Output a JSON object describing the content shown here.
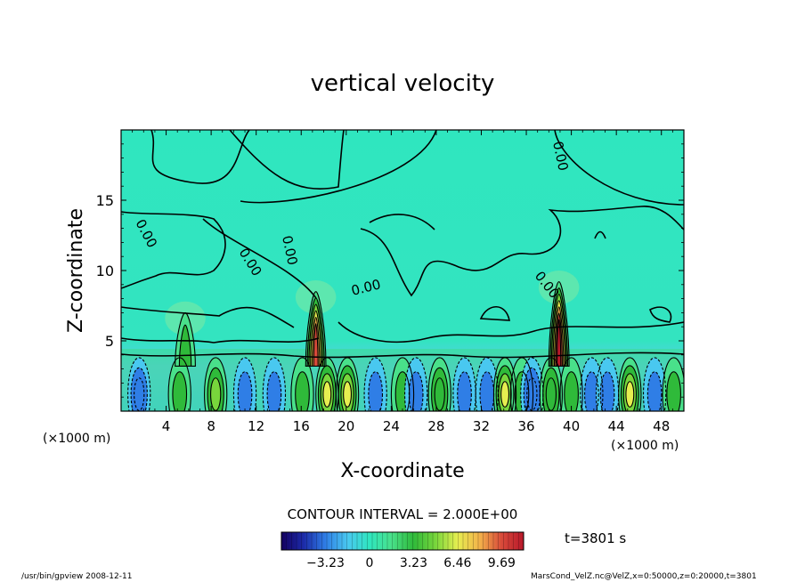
{
  "chart_data": {
    "type": "heatmap",
    "title": "vertical velocity",
    "xlabel": "X-coordinate",
    "ylabel": "Z-coordinate",
    "x_unit": "(×1000 m)",
    "xlim": [
      0,
      50
    ],
    "ylim": [
      0,
      20
    ],
    "x_ticks": [
      4,
      8,
      12,
      16,
      20,
      24,
      28,
      32,
      36,
      40,
      44,
      48
    ],
    "y_ticks": [
      5,
      10,
      15
    ],
    "contour_interval": "CONTOUR INTERVAL = 2.000E+00",
    "contour_label": "0.00",
    "colorbar": {
      "ticks": [
        "−3.23",
        "0",
        "3.23",
        "6.46",
        "9.69"
      ],
      "tick_values": [
        -3.23,
        0,
        3.23,
        6.46,
        9.69
      ],
      "range": [
        -6.46,
        11.3
      ],
      "stops": [
        "#140060",
        "#1c2aa8",
        "#2f7ee6",
        "#49c8f0",
        "#2fe6bf",
        "#49e08a",
        "#2fba3a",
        "#78d63c",
        "#e6ee50",
        "#f3b24a",
        "#d84a3a",
        "#b8182a"
      ]
    },
    "time_label": "t=3801 s",
    "plumes": [
      {
        "x": 17.3,
        "top": 8.5,
        "peak": 9.5
      },
      {
        "x": 38.9,
        "top": 9.2,
        "peak": 11.0
      },
      {
        "x": 5.7,
        "top": 7.0,
        "peak": 3.0
      }
    ],
    "lower_cells": [
      {
        "x": 1.6,
        "w": -4.0
      },
      {
        "x": 5.2,
        "w": 3.0
      },
      {
        "x": 8.4,
        "w": 4.5
      },
      {
        "x": 11.0,
        "w": -3.2
      },
      {
        "x": 13.6,
        "w": -3.0
      },
      {
        "x": 16.1,
        "w": 3.2
      },
      {
        "x": 18.3,
        "w": 6.5
      },
      {
        "x": 20.1,
        "w": 7.0
      },
      {
        "x": 22.6,
        "w": -3.0
      },
      {
        "x": 25.0,
        "w": 2.5
      },
      {
        "x": 26.2,
        "w": -3.6
      },
      {
        "x": 28.3,
        "w": 4.0
      },
      {
        "x": 30.5,
        "w": -3.0
      },
      {
        "x": 32.5,
        "w": -3.6
      },
      {
        "x": 34.1,
        "w": 6.5
      },
      {
        "x": 35.6,
        "w": 3.5
      },
      {
        "x": 36.5,
        "w": -4.0
      },
      {
        "x": 38.2,
        "w": 4.0
      },
      {
        "x": 40.0,
        "w": 3.0
      },
      {
        "x": 41.8,
        "w": -3.4
      },
      {
        "x": 43.2,
        "w": -3.0
      },
      {
        "x": 45.2,
        "w": 7.0
      },
      {
        "x": 47.4,
        "w": -3.5
      },
      {
        "x": 49.1,
        "w": 3.0
      }
    ]
  },
  "footer": {
    "left": "/usr/bin/gpview   2008-12-11",
    "right": "MarsCond_VelZ.nc@VelZ,x=0:50000,z=0:20000,t=3801"
  }
}
